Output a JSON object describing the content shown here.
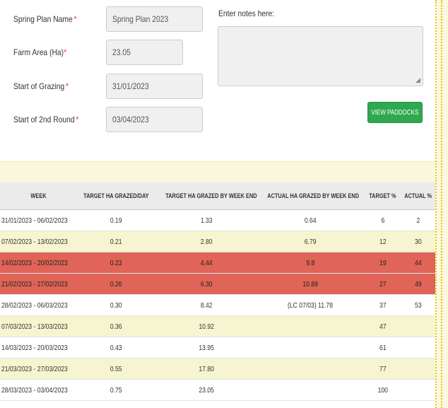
{
  "form": {
    "spring_plan_name": {
      "label": "Spring Plan Name",
      "required": "*",
      "value": "Spring Plan 2023"
    },
    "farm_area": {
      "label": "Farm Area (Ha)",
      "required": "*",
      "value": "23.05"
    },
    "start_of_grazing": {
      "label": "Start of Grazing",
      "required": "*",
      "value": "31/01/2023"
    },
    "start_of_2nd_round": {
      "label": "Start of 2nd Round",
      "required": "*",
      "value": "03/04/2023"
    },
    "notes": {
      "label": "Enter notes here:",
      "value": ""
    },
    "view_paddocks_label": "VIEW PADDOCKS"
  },
  "table": {
    "headers": [
      "WEEK",
      "TARGET HA GRAZED/DAY",
      "TARGET HA GRAZED BY WEEK END",
      "ACTUAL HA GRAZED BY WEEK END",
      "TARGET %",
      "ACTUAL %"
    ],
    "rows": [
      {
        "style": "white",
        "cells": [
          "31/01/2023 - 06/02/2023",
          "0.19",
          "1.33",
          "0.64",
          "6",
          "2"
        ]
      },
      {
        "style": "yellow",
        "cells": [
          "07/02/2023 - 13/02/2023",
          "0.21",
          "2.80",
          "6.79",
          "12",
          "30"
        ]
      },
      {
        "style": "red",
        "cells": [
          "14/02/2023 - 20/02/2023",
          "0.23",
          "4.44",
          "9.8",
          "19",
          "44"
        ]
      },
      {
        "style": "red",
        "cells": [
          "21/02/2023 - 27/02/2023",
          "0.26",
          "6.30",
          "10.89",
          "27",
          "49"
        ]
      },
      {
        "style": "white",
        "cells": [
          "28/02/2023 - 06/03/2023",
          "0.30",
          "8.42",
          "(LC 07/03) 11.78",
          "37",
          "53"
        ]
      },
      {
        "style": "yellow",
        "cells": [
          "07/03/2023 - 13/03/2023",
          "0.36",
          "10.92",
          "",
          "47",
          ""
        ]
      },
      {
        "style": "white",
        "cells": [
          "14/03/2023 - 20/03/2023",
          "0.43",
          "13.95",
          "",
          "61",
          ""
        ]
      },
      {
        "style": "yellow",
        "cells": [
          "21/03/2023 - 27/03/2023",
          "0.55",
          "17.80",
          "",
          "77",
          ""
        ]
      },
      {
        "style": "white",
        "cells": [
          "28/03/2023 - 03/04/2023",
          "0.75",
          "23.05",
          "",
          "100",
          ""
        ]
      }
    ]
  },
  "colors": {
    "row_white": "#ffffff",
    "row_yellow": "#f6f5d0",
    "row_red": "#e06457",
    "button_green": "#2fa84f",
    "required_red": "#e53935"
  }
}
